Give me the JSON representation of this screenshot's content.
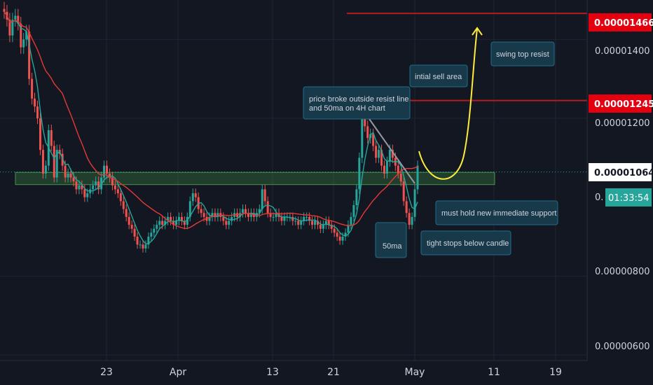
{
  "chart_data": {
    "type": "candlestick",
    "y_axis": {
      "range": [
        5.86e-06,
        1.5e-05
      ],
      "tick_labels": [
        "0.00001400",
        "0.00001200",
        "0.00000800",
        "0.00000600"
      ],
      "tick_values": [
        1.4e-05,
        1.2e-05,
        8e-06,
        6e-06
      ],
      "partial_label": "0."
    },
    "x_axis": {
      "tick_labels": [
        "23",
        "Apr",
        "13",
        "21",
        "May",
        "11",
        "19"
      ]
    },
    "price_markers": [
      {
        "label": "0.00001466",
        "value": 1.466e-05,
        "color": "#e4000f",
        "style": "line"
      },
      {
        "label": "0.00001245",
        "value": 1.245e-05,
        "color": "#e4000f",
        "style": "line"
      },
      {
        "label": "0.00001064",
        "value": 1.064e-05,
        "color": "#ffffff",
        "style": "dotted-current"
      }
    ],
    "countdown": {
      "label": "01:33:54",
      "color": "#26a69a"
    },
    "support_zone": {
      "top": 1.063e-05,
      "bottom": 1.032e-05,
      "color": "#4caf50"
    },
    "annotations": [
      {
        "text": "swing top resist"
      },
      {
        "text": "intial sell area"
      },
      {
        "text_lines": [
          "price broke outside resist line",
          "and 50ma on 4H chart"
        ]
      },
      {
        "text": "must hold new immediate support"
      },
      {
        "text": "tight stops below candle"
      },
      {
        "text": "50ma"
      }
    ],
    "series": [
      {
        "kind": "close",
        "values": [
          1.47e-05,
          1.45e-05,
          1.41e-05,
          1.45e-05,
          1.46e-05,
          1.44e-05,
          1.38e-05,
          1.4e-05,
          1.42e-05,
          1.3e-05,
          1.25e-05,
          1.23e-05,
          1.2e-05,
          1.12e-05,
          1.06e-05,
          1.08e-05,
          1.17e-05,
          1.13e-05,
          1.05e-05,
          1.12e-05,
          1.11e-05,
          1.08e-05,
          1.05e-05,
          1.06e-05,
          1.05e-05,
          1.04e-05,
          1.02e-05,
          1.03e-05,
          1.02e-05,
          1e-05,
          1.01e-05,
          1.02e-05,
          1.03e-05,
          1.04e-05,
          1.02e-05,
          1.05e-05,
          1.08e-05,
          1.06e-05,
          1.05e-05,
          1.03e-05,
          1.02e-05,
          1.01e-05,
          9.9e-06,
          9.7e-06,
          9.5e-06,
          9.3e-06,
          9.2e-06,
          9e-06,
          8.8e-06,
          8.8e-06,
          8.7e-06,
          8.8e-06,
          9e-06,
          9.1e-06,
          9.2e-06,
          9.3e-06,
          9.4e-06,
          9.3e-06,
          9.4e-06,
          9.5e-06,
          9.4e-06,
          9.3e-06,
          9.4e-06,
          9.5e-06,
          9.4e-06,
          9.3e-06,
          9.5e-06,
          9.9e-06,
          1.01e-05,
          1e-05,
          9.7e-06,
          9.6e-06,
          9.5e-06,
          9.4e-06,
          9.5e-06,
          9.6e-06,
          9.5e-06,
          9.6e-06,
          9.5e-06,
          9.4e-06,
          9.3e-06,
          9.4e-06,
          9.5e-06,
          9.6e-06,
          9.5e-06,
          9.6e-06,
          9.7e-06,
          9.6e-06,
          9.5e-06,
          9.6e-06,
          9.5e-06,
          9.6e-06,
          9.7e-06,
          1.02e-05,
          9.9e-06,
          9.6e-06,
          9.5e-06,
          9.5e-06,
          9.6e-06,
          9.5e-06,
          9.4e-06,
          9.5e-06,
          9.5e-06,
          9.5e-06,
          9.4e-06,
          9.4e-06,
          9.3e-06,
          9.4e-06,
          9.5e-06,
          9.5e-06,
          9.4e-06,
          9.3e-06,
          9.4e-06,
          9.3e-06,
          9.2e-06,
          9.3e-06,
          9.4e-06,
          9.3e-06,
          9.2e-06,
          9.1e-06,
          9e-06,
          8.9e-06,
          9e-06,
          9.1e-06,
          9.3e-06,
          9.5e-06,
          9.8e-06,
          1.02e-05,
          1.1e-05,
          1.2e-05,
          1.18e-05,
          1.15e-05,
          1.16e-05,
          1.13e-05,
          1.1e-05,
          1.12e-05,
          1.08e-05,
          1.06e-05,
          1.09e-05,
          1.12e-05,
          1.1e-05,
          1.08e-05,
          1.06e-05,
          1.04e-05,
          9.9e-06,
          9.6e-06,
          9.3e-06,
          9.5e-06,
          1.02e-05,
          1.08e-05
        ]
      },
      {
        "kind": "ma-short",
        "name": "50ma",
        "color": "#26a69a"
      },
      {
        "kind": "ma-long",
        "color": "#e53935"
      }
    ]
  }
}
